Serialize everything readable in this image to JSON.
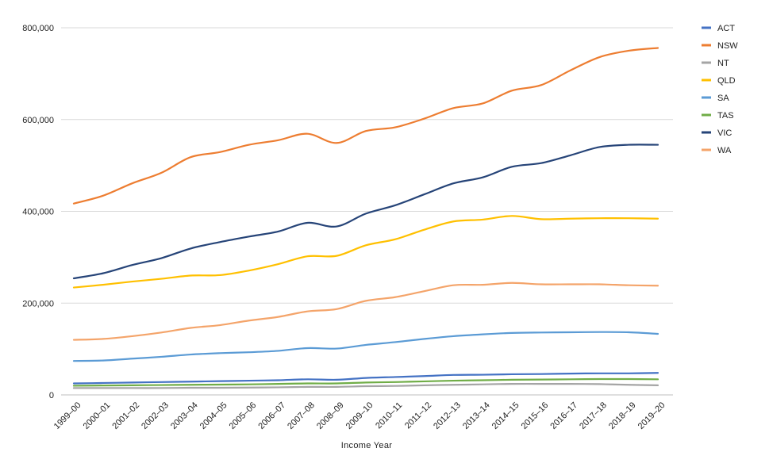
{
  "chart_data": {
    "type": "line",
    "title": "",
    "xlabel": "Income Year",
    "ylabel": "",
    "ylim": [
      0,
      800000
    ],
    "yticks": [
      0,
      200000,
      400000,
      600000,
      800000
    ],
    "ytick_labels": [
      "0",
      "200,000",
      "400,000",
      "600,000",
      "800,000"
    ],
    "grid": true,
    "legend_position": "right",
    "categories": [
      "1999–00",
      "2000–01",
      "2001–02",
      "2002–03",
      "2003–04",
      "2004–05",
      "2005–06",
      "2006–07",
      "2007–08",
      "2008–09",
      "2009–10",
      "2010–11",
      "2011–12",
      "2012–13",
      "2013–14",
      "2014–15",
      "2015–16",
      "2016–17",
      "2017–18",
      "2018–19",
      "2019–20"
    ],
    "series": [
      {
        "name": "ACT",
        "color": "#4472C4",
        "values": [
          25000,
          26000,
          27000,
          28000,
          29000,
          30000,
          31000,
          32000,
          34000,
          33000,
          37000,
          39000,
          41000,
          43500,
          44000,
          45000,
          45500,
          46500,
          47000,
          47000,
          48000
        ]
      },
      {
        "name": "NSW",
        "color": "#ED7D31",
        "values": [
          417000,
          434000,
          461000,
          484000,
          518000,
          529000,
          545000,
          555000,
          569000,
          549000,
          575000,
          583000,
          602000,
          625000,
          635000,
          663000,
          675000,
          707000,
          736000,
          750000,
          756000
        ]
      },
      {
        "name": "NT",
        "color": "#A5A5A5",
        "values": [
          15000,
          15000,
          15000,
          15000,
          15500,
          15500,
          16000,
          16500,
          17500,
          17500,
          19000,
          19500,
          21000,
          22000,
          23000,
          24000,
          24000,
          24000,
          23500,
          22000,
          21000
        ]
      },
      {
        "name": "QLD",
        "color": "#FFC000",
        "values": [
          234000,
          240000,
          247000,
          253000,
          260000,
          261000,
          271000,
          285000,
          302000,
          303000,
          326000,
          339000,
          360000,
          378000,
          382000,
          390000,
          383000,
          384000,
          385000,
          385000,
          384000
        ]
      },
      {
        "name": "SA",
        "color": "#5B9BD5",
        "values": [
          74000,
          75000,
          79000,
          83000,
          88000,
          91000,
          93000,
          96000,
          102000,
          101000,
          109000,
          115000,
          122000,
          128000,
          132000,
          135000,
          136000,
          136500,
          137000,
          136500,
          133000
        ]
      },
      {
        "name": "TAS",
        "color": "#70AD47",
        "values": [
          20000,
          20500,
          21000,
          21500,
          22000,
          22500,
          23000,
          24000,
          25000,
          25000,
          27000,
          28000,
          29500,
          31000,
          32000,
          33000,
          33500,
          34000,
          34500,
          34500,
          34000
        ]
      },
      {
        "name": "VIC",
        "color": "#264478",
        "values": [
          254000,
          265000,
          283000,
          298000,
          319000,
          333000,
          345000,
          356000,
          375000,
          367000,
          395000,
          413000,
          437000,
          461000,
          474000,
          497000,
          505000,
          522000,
          540000,
          545000,
          545000
        ]
      },
      {
        "name": "WA",
        "color": "#F4A46A",
        "values": [
          120000,
          122000,
          128000,
          136000,
          146000,
          152000,
          162000,
          170000,
          182000,
          187000,
          205000,
          213000,
          226000,
          239000,
          240000,
          244000,
          241000,
          241000,
          241000,
          239000,
          238000
        ]
      }
    ]
  }
}
